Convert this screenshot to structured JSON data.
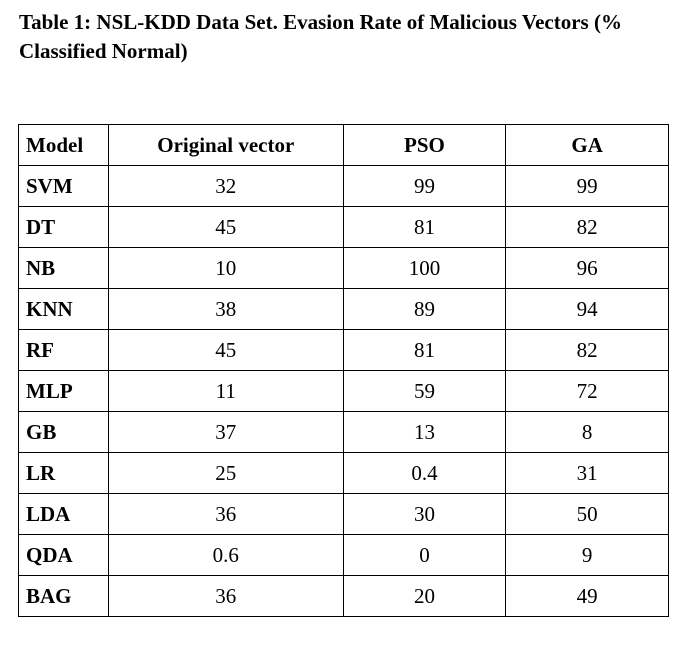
{
  "caption": "Table 1: NSL-KDD Data Set. Evasion Rate of Malicious Vectors (% Classified Normal)",
  "table": {
    "headers": [
      "Model",
      "Original vector",
      "PSO",
      "GA"
    ],
    "rows": [
      {
        "model": "SVM",
        "original": "32",
        "pso": "99",
        "ga": "99"
      },
      {
        "model": "DT",
        "original": "45",
        "pso": "81",
        "ga": "82"
      },
      {
        "model": "NB",
        "original": "10",
        "pso": "100",
        "ga": "96"
      },
      {
        "model": "KNN",
        "original": "38",
        "pso": "89",
        "ga": "94"
      },
      {
        "model": "RF",
        "original": "45",
        "pso": "81",
        "ga": "82"
      },
      {
        "model": "MLP",
        "original": "11",
        "pso": "59",
        "ga": "72"
      },
      {
        "model": "GB",
        "original": "37",
        "pso": "13",
        "ga": "8"
      },
      {
        "model": "LR",
        "original": "25",
        "pso": "0.4",
        "ga": "31"
      },
      {
        "model": "LDA",
        "original": "36",
        "pso": "30",
        "ga": "50"
      },
      {
        "model": "QDA",
        "original": "0.6",
        "pso": "0",
        "ga": "9"
      },
      {
        "model": "BAG",
        "original": "36",
        "pso": "20",
        "ga": "49"
      }
    ]
  }
}
